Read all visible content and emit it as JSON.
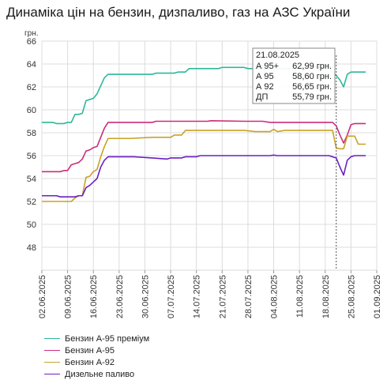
{
  "header": {
    "title": "Динаміка цін на бензин, дизпаливо, газ на АЗС України"
  },
  "chart_data": {
    "type": "line",
    "title": "Динаміка цін на бензин, дизпаливо, газ на АЗС України",
    "ylabel": "грн.",
    "xlabel": "",
    "ylim": [
      46,
      66
    ],
    "yticks": [
      48,
      50,
      52,
      54,
      56,
      58,
      60,
      62,
      64,
      66
    ],
    "xtick_labels": [
      "02.06.2025",
      "09.06.2025",
      "16.06.2025",
      "23.06.2025",
      "30.06.2025",
      "07.07.2025",
      "14.07.2025",
      "21.07.2025",
      "28.07.2025",
      "04.08.2025",
      "11.08.2025",
      "18.08.2025",
      "25.08.2025",
      "01.09.2025"
    ],
    "grid": true,
    "legend_position": "bottom-left",
    "tooltip": {
      "date": "21.08.2025",
      "day_index": 80,
      "rows": [
        {
          "label": "А 95+",
          "value": "62,99 грн."
        },
        {
          "label": "А 95",
          "value": "58,60 грн."
        },
        {
          "label": "А 92",
          "value": "56,65 грн."
        },
        {
          "label": "ДП",
          "value": "55,79 грн."
        }
      ]
    },
    "series": [
      {
        "name": "Бензин А-95 преміум",
        "color": "#2db89a",
        "points": [
          [
            0,
            58.9
          ],
          [
            3,
            58.9
          ],
          [
            4,
            58.8
          ],
          [
            6,
            58.8
          ],
          [
            7,
            58.9
          ],
          [
            8,
            58.9
          ],
          [
            9,
            59.6
          ],
          [
            10,
            59.6
          ],
          [
            11,
            59.7
          ],
          [
            12,
            60.8
          ],
          [
            13,
            60.9
          ],
          [
            14,
            61.0
          ],
          [
            15,
            61.4
          ],
          [
            16,
            62.1
          ],
          [
            17,
            62.8
          ],
          [
            18,
            63.1
          ],
          [
            25,
            63.1
          ],
          [
            30,
            63.1
          ],
          [
            31,
            63.2
          ],
          [
            36,
            63.2
          ],
          [
            37,
            63.3
          ],
          [
            39,
            63.3
          ],
          [
            40,
            63.6
          ],
          [
            48,
            63.6
          ],
          [
            49,
            63.7
          ],
          [
            55,
            63.7
          ],
          [
            56,
            63.6
          ],
          [
            63,
            63.6
          ],
          [
            73,
            63.6
          ],
          [
            74,
            63.7
          ],
          [
            78,
            63.7
          ],
          [
            79,
            63.3
          ],
          [
            80,
            62.99
          ],
          [
            81,
            62.6
          ],
          [
            82,
            62.0
          ],
          [
            83,
            63.1
          ],
          [
            84,
            63.3
          ],
          [
            88,
            63.3
          ]
        ]
      },
      {
        "name": "Бензин А-95",
        "color": "#cc2c7c",
        "points": [
          [
            0,
            54.6
          ],
          [
            5,
            54.6
          ],
          [
            6,
            54.7
          ],
          [
            7,
            54.7
          ],
          [
            8,
            55.2
          ],
          [
            9,
            55.3
          ],
          [
            10,
            55.4
          ],
          [
            11,
            55.7
          ],
          [
            12,
            56.4
          ],
          [
            13,
            56.5
          ],
          [
            14,
            56.7
          ],
          [
            15,
            56.8
          ],
          [
            16,
            57.6
          ],
          [
            17,
            58.4
          ],
          [
            18,
            58.9
          ],
          [
            23,
            58.9
          ],
          [
            30,
            58.9
          ],
          [
            31,
            59.0
          ],
          [
            35,
            59.0
          ],
          [
            40,
            59.0
          ],
          [
            45,
            59.0
          ],
          [
            46,
            59.05
          ],
          [
            55,
            59.0
          ],
          [
            60,
            59.0
          ],
          [
            62,
            58.9
          ],
          [
            72,
            58.9
          ],
          [
            79,
            58.9
          ],
          [
            80,
            58.6
          ],
          [
            81,
            57.8
          ],
          [
            82,
            57.1
          ],
          [
            83,
            57.8
          ],
          [
            84,
            58.7
          ],
          [
            85,
            58.8
          ],
          [
            88,
            58.8
          ]
        ]
      },
      {
        "name": "Бензин А-92",
        "color": "#c9a227",
        "points": [
          [
            0,
            52.0
          ],
          [
            8,
            52.0
          ],
          [
            9,
            52.3
          ],
          [
            10,
            52.5
          ],
          [
            11,
            52.5
          ],
          [
            12,
            54.1
          ],
          [
            13,
            54.2
          ],
          [
            14,
            54.6
          ],
          [
            15,
            54.8
          ],
          [
            16,
            55.9
          ],
          [
            17,
            56.8
          ],
          [
            18,
            57.5
          ],
          [
            24,
            57.5
          ],
          [
            30,
            57.6
          ],
          [
            31,
            57.6
          ],
          [
            35,
            57.6
          ],
          [
            36,
            57.8
          ],
          [
            38,
            57.8
          ],
          [
            39,
            58.2
          ],
          [
            46,
            58.2
          ],
          [
            55,
            58.2
          ],
          [
            58,
            58.1
          ],
          [
            62,
            58.1
          ],
          [
            63,
            58.3
          ],
          [
            64,
            58.1
          ],
          [
            66,
            58.2
          ],
          [
            72,
            58.2
          ],
          [
            79,
            58.2
          ],
          [
            80,
            56.65
          ],
          [
            81,
            56.6
          ],
          [
            82,
            56.6
          ],
          [
            83,
            57.7
          ],
          [
            85,
            57.7
          ],
          [
            86,
            57.0
          ],
          [
            88,
            57.0
          ]
        ]
      },
      {
        "name": "Дизельне паливо",
        "color": "#6b1fc4",
        "points": [
          [
            0,
            52.5
          ],
          [
            4,
            52.5
          ],
          [
            5,
            52.4
          ],
          [
            9,
            52.4
          ],
          [
            10,
            52.5
          ],
          [
            11,
            52.5
          ],
          [
            12,
            53.2
          ],
          [
            13,
            53.4
          ],
          [
            14,
            53.7
          ],
          [
            15,
            54.0
          ],
          [
            16,
            55.0
          ],
          [
            17,
            55.6
          ],
          [
            18,
            55.9
          ],
          [
            25,
            55.9
          ],
          [
            30,
            55.8
          ],
          [
            34,
            55.7
          ],
          [
            35,
            55.8
          ],
          [
            38,
            55.8
          ],
          [
            39,
            55.9
          ],
          [
            42,
            55.9
          ],
          [
            43,
            56.0
          ],
          [
            55,
            56.0
          ],
          [
            62,
            56.0
          ],
          [
            63,
            56.05
          ],
          [
            64,
            56.0
          ],
          [
            78,
            56.0
          ],
          [
            79,
            55.9
          ],
          [
            80,
            55.79
          ],
          [
            81,
            55.0
          ],
          [
            82,
            54.3
          ],
          [
            83,
            55.6
          ],
          [
            84,
            55.9
          ],
          [
            85,
            56.0
          ],
          [
            88,
            56.0
          ]
        ]
      }
    ]
  }
}
